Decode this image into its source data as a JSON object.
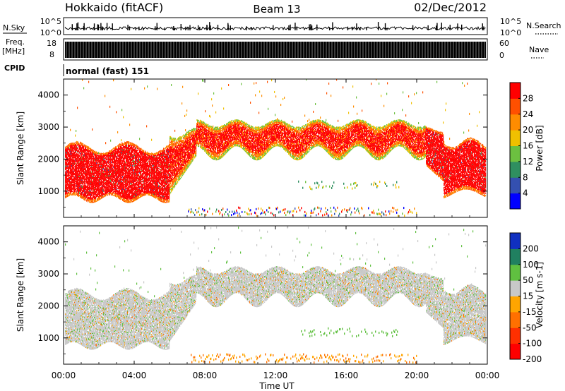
{
  "header": {
    "radar": "Hokkaido (fitACF)",
    "beam": "Beam 13",
    "date": "02/Dec/2012"
  },
  "strips": {
    "nsky_label": "N.Sky",
    "nsky_ticks": [
      "10^5",
      "10^0"
    ],
    "nsearch_label": "N.Search",
    "nsearch_ticks": [
      "10^5",
      "10^0"
    ],
    "freq_label": "Freq.",
    "freq_unit": "[MHz]",
    "freq_ticks": [
      "18",
      "8"
    ],
    "nave_label": "Nave",
    "nave_ticks": [
      "60",
      "0"
    ],
    "cpid_label": "CPID",
    "cpid_value": "normal (fast) 151"
  },
  "chart_data": [
    {
      "type": "heatmap",
      "panel": "power",
      "title": "",
      "xlabel": "",
      "ylabel": "Slant Range [km]",
      "x_range_hours": [
        0,
        24
      ],
      "ylim": [
        180,
        4500
      ],
      "y_ticks": [
        1000,
        2000,
        3000,
        4000
      ],
      "colorbar_label": "Power [dB]",
      "colorbar_ticks": [
        "28",
        "24",
        "20",
        "16",
        "12",
        "8",
        "4"
      ],
      "colorbar_range": [
        0,
        32
      ],
      "colors": [
        "#0000ff",
        "#3450b0",
        "#2f8f60",
        "#6cc040",
        "#f0c000",
        "#ff8c00",
        "#ff5000",
        "#ff0000"
      ],
      "echo_bands": [
        {
          "x_start": 0,
          "x_end": 6,
          "range_low": 800,
          "range_high": 2500,
          "level": "high"
        },
        {
          "x_start": 6,
          "x_end": 21,
          "range_low": 2400,
          "range_high": 3200,
          "level": "high"
        },
        {
          "x_start": 21,
          "x_end": 24,
          "range_low": 900,
          "range_high": 2600,
          "level": "high"
        },
        {
          "x_start": 7,
          "x_end": 20,
          "range_low": 250,
          "range_high": 450,
          "level": "mixed"
        },
        {
          "x_start": 13,
          "x_end": 19,
          "range_low": 1050,
          "range_high": 1300,
          "level": "mixed"
        }
      ]
    },
    {
      "type": "heatmap",
      "panel": "velocity",
      "title": "",
      "xlabel": "Time UT",
      "ylabel": "Slant Range [km]",
      "x_range_hours": [
        0,
        24
      ],
      "x_ticks": [
        "00:00",
        "04:00",
        "08:00",
        "12:00",
        "16:00",
        "20:00",
        "00:00"
      ],
      "ylim": [
        180,
        4500
      ],
      "y_ticks": [
        1000,
        2000,
        3000,
        4000
      ],
      "colorbar_label": "Velocity [m s-1]",
      "colorbar_ticks": [
        "200",
        "100",
        "50",
        "15",
        "-15",
        "-50",
        "-100",
        "-200"
      ],
      "colorbar_range": [
        -250,
        250
      ],
      "colors": [
        "#ff0000",
        "#ff3000",
        "#ff7000",
        "#ffa500",
        "#c8c8c8",
        "#60c040",
        "#208060",
        "#1030c0"
      ],
      "dominant": "ground scatter (grey, -15 to 15 m/s) with scattered green and orange echoes"
    }
  ]
}
